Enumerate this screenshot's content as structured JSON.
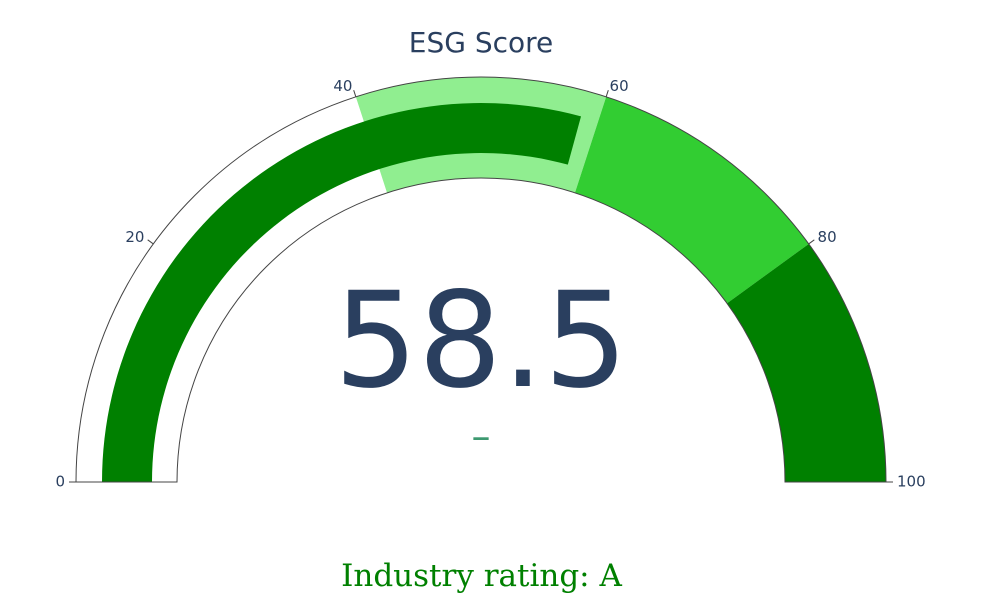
{
  "chart_data": {
    "type": "gauge",
    "title": "ESG Score",
    "value": 58.5,
    "value_display": "58.5",
    "delta_display": "–",
    "range": [
      0,
      100
    ],
    "ticks": [
      0,
      20,
      40,
      60,
      80,
      100
    ],
    "tick_labels": [
      "0",
      "20",
      "40",
      "60",
      "80",
      "100"
    ],
    "steps": [
      {
        "range": [
          0,
          40
        ],
        "color": "#ffffff"
      },
      {
        "range": [
          40,
          60
        ],
        "color": "#90ee90"
      },
      {
        "range": [
          60,
          80
        ],
        "color": "#32cd32"
      },
      {
        "range": [
          80,
          100
        ],
        "color": "#008000"
      }
    ],
    "bar_color": "#008000",
    "outline_color": "#444444",
    "title_color": "#2a3f5f",
    "delta_color": "#3d9970"
  },
  "footer": {
    "text": "Industry rating: A",
    "color": "#008000"
  }
}
